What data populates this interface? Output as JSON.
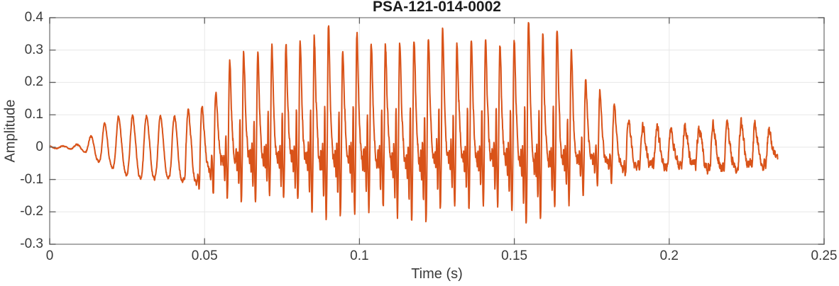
{
  "chart_data": {
    "type": "line",
    "title": "PSA-121-014-0002",
    "xlabel": "Time (s)",
    "ylabel": "Amplitude",
    "xlim": [
      0,
      0.25
    ],
    "ylim": [
      -0.3,
      0.4
    ],
    "xticks": [
      0,
      0.05,
      0.1,
      0.15,
      0.2,
      0.25
    ],
    "xtick_labels": [
      "0",
      "0.05",
      "0.1",
      "0.15",
      "0.2",
      "0.25"
    ],
    "yticks": [
      -0.3,
      -0.2,
      -0.1,
      0,
      0.1,
      0.2,
      0.3,
      0.4
    ],
    "ytick_labels": [
      "-0.3",
      "-0.2",
      "-0.1",
      "0",
      "0.1",
      "0.2",
      "0.3",
      "0.4"
    ],
    "grid": true,
    "box": true,
    "legend": null,
    "colors": {
      "line": "#D95319",
      "grid": "#E7E7E7",
      "axis_box": "#909090",
      "tick": "#5E5E5E",
      "text": "#3A3A3A",
      "title_text": "#1C1C1C",
      "background": "#FFFFFF"
    },
    "signal": {
      "description": "voiced speech-like waveform: quiet onset, smooth ~219 Hz oscillation growing from t=0.015s, dense glottal-pulse spikes (peaks ~0.35, troughs ~-0.25) between t=0.06-0.17s, decaying to low-amplitude noisy tail ending at t=0.235s",
      "duration_s": 0.235,
      "f0_hz": 219,
      "harmonics": [
        1.0,
        0.78,
        0.62,
        0.68,
        0.52,
        0.42,
        0.33,
        0.24,
        0.16,
        0.1
      ],
      "harmonic_phase_chirp": 0.22,
      "vibrato": {
        "rate_hz": 4.6,
        "depth": 0.012
      },
      "jitter": 0.08,
      "seed": 7,
      "envelope": {
        "t_step_s": 0.005,
        "t": [
          0,
          0.005,
          0.01,
          0.015,
          0.02,
          0.025,
          0.03,
          0.035,
          0.04,
          0.045,
          0.05,
          0.055,
          0.06,
          0.065,
          0.07,
          0.075,
          0.08,
          0.085,
          0.09,
          0.095,
          0.1,
          0.105,
          0.11,
          0.115,
          0.12,
          0.125,
          0.13,
          0.135,
          0.14,
          0.145,
          0.15,
          0.155,
          0.16,
          0.165,
          0.17,
          0.175,
          0.18,
          0.185,
          0.19,
          0.195,
          0.2,
          0.205,
          0.21,
          0.215,
          0.22,
          0.225,
          0.23,
          0.235
        ],
        "pos": [
          0.004,
          0.004,
          0.01,
          0.045,
          0.09,
          0.095,
          0.1,
          0.1,
          0.095,
          0.11,
          0.14,
          0.2,
          0.28,
          0.3,
          0.31,
          0.33,
          0.32,
          0.35,
          0.35,
          0.31,
          0.34,
          0.35,
          0.33,
          0.36,
          0.33,
          0.35,
          0.35,
          0.31,
          0.34,
          0.31,
          0.33,
          0.37,
          0.33,
          0.35,
          0.26,
          0.21,
          0.16,
          0.1,
          0.07,
          0.07,
          0.06,
          0.07,
          0.06,
          0.07,
          0.06,
          0.08,
          0.07,
          0.04
        ],
        "neg": [
          -0.004,
          -0.004,
          -0.01,
          -0.04,
          -0.07,
          -0.09,
          -0.095,
          -0.1,
          -0.1,
          -0.115,
          -0.13,
          -0.15,
          -0.17,
          -0.18,
          -0.15,
          -0.17,
          -0.16,
          -0.2,
          -0.23,
          -0.2,
          -0.22,
          -0.18,
          -0.2,
          -0.22,
          -0.24,
          -0.18,
          -0.17,
          -0.2,
          -0.18,
          -0.18,
          -0.2,
          -0.25,
          -0.2,
          -0.18,
          -0.15,
          -0.12,
          -0.1,
          -0.095,
          -0.07,
          -0.06,
          -0.06,
          -0.06,
          -0.06,
          -0.07,
          -0.07,
          -0.06,
          -0.06,
          -0.03
        ],
        "brightness": [
          0.1,
          0.1,
          0.12,
          0.18,
          0.22,
          0.24,
          0.25,
          0.26,
          0.3,
          0.45,
          0.65,
          0.82,
          0.92,
          0.95,
          0.95,
          0.95,
          0.95,
          0.95,
          0.95,
          0.95,
          0.95,
          0.95,
          0.95,
          0.95,
          0.95,
          0.95,
          0.95,
          0.95,
          0.95,
          0.95,
          0.95,
          0.95,
          0.95,
          0.95,
          0.9,
          0.82,
          0.72,
          0.6,
          0.52,
          0.5,
          0.5,
          0.5,
          0.5,
          0.5,
          0.5,
          0.52,
          0.5,
          0.45
        ],
        "noise": [
          0.0012,
          0.0012,
          0.002,
          0.003,
          0.004,
          0.004,
          0.004,
          0.004,
          0.005,
          0.006,
          0.008,
          0.01,
          0.012,
          0.012,
          0.012,
          0.012,
          0.012,
          0.012,
          0.012,
          0.012,
          0.012,
          0.012,
          0.012,
          0.012,
          0.012,
          0.012,
          0.012,
          0.012,
          0.012,
          0.012,
          0.012,
          0.012,
          0.012,
          0.012,
          0.012,
          0.011,
          0.01,
          0.01,
          0.013,
          0.014,
          0.014,
          0.014,
          0.014,
          0.014,
          0.014,
          0.014,
          0.014,
          0.01
        ]
      }
    }
  }
}
